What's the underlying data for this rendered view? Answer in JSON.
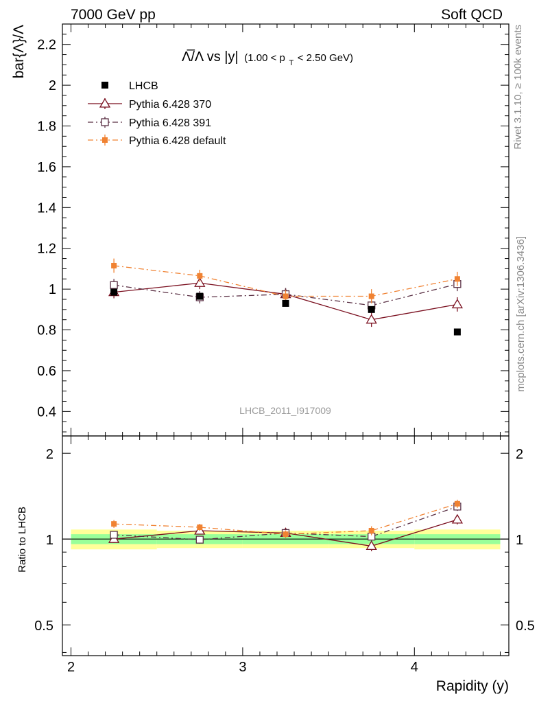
{
  "header": {
    "left": "7000 GeV pp",
    "right": "Soft QCD"
  },
  "side_labels": {
    "rivet": "Rivet 3.1.10, ≥ 100k events",
    "mcplots": "mcplots.cern.ch [arXiv:1306.3436]"
  },
  "watermark": "LHCB_2011_I917009",
  "colors": {
    "data": "#000000",
    "p370": "#7a0f1f",
    "p391": "#5a3044",
    "pdefault": "#f08232",
    "band_outer": "#ffff99",
    "band_inner": "#99ff99"
  },
  "chart_data": {
    "type": "scatter",
    "title": {
      "main": "Λ̅/Λ vs |y|",
      "cut_open": "(1.00 < p",
      "cut_sub": "T",
      "cut_close": " < 2.50 GeV)"
    },
    "xlabel": "Rapidity (y)",
    "ylabel": "bar{Λ}/Λ",
    "ratio_ylabel": "Ratio to LHCB",
    "xlim": [
      1.95,
      4.55
    ],
    "ylim": [
      0.28,
      2.3
    ],
    "ratio_ylim": [
      0.39,
      2.3
    ],
    "x_ticks": [
      "2",
      "3",
      "4"
    ],
    "y_ticks": [
      "0.4",
      "0.6",
      "0.8",
      "1",
      "1.2",
      "1.4",
      "1.6",
      "1.8",
      "2",
      "2.2"
    ],
    "ratio_ticks": [
      "0.5",
      "1",
      "2"
    ],
    "legend": [
      {
        "key": "data",
        "label": "LHCB"
      },
      {
        "key": "p370",
        "label": "Pythia 6.428 370"
      },
      {
        "key": "p391",
        "label": "Pythia 6.428 391"
      },
      {
        "key": "pdefault",
        "label": "Pythia 6.428 default"
      }
    ],
    "x_bins": [
      [
        2.0,
        2.5
      ],
      [
        2.5,
        3.0
      ],
      [
        3.0,
        3.5
      ],
      [
        3.5,
        4.0
      ],
      [
        4.0,
        4.5
      ]
    ],
    "data": {
      "name": "LHCB",
      "x": [
        2.25,
        2.75,
        3.25,
        3.75,
        4.25
      ],
      "y": [
        0.985,
        0.965,
        0.93,
        0.9,
        0.79
      ],
      "band_inner": [
        0.04,
        0.04,
        0.04,
        0.04,
        0.04
      ],
      "band_outer": [
        0.08,
        0.07,
        0.07,
        0.07,
        0.08
      ]
    },
    "series": [
      {
        "key": "p370",
        "name": "Pythia 6.428 370",
        "x": [
          2.25,
          2.75,
          3.25,
          3.75,
          4.25
        ],
        "y": [
          0.985,
          1.03,
          0.975,
          0.85,
          0.925
        ],
        "err": [
          0.03,
          0.03,
          0.03,
          0.035,
          0.035
        ],
        "ratio": [
          1.0,
          1.07,
          1.05,
          0.945,
          1.17
        ]
      },
      {
        "key": "p391",
        "name": "Pythia 6.428 391",
        "x": [
          2.25,
          2.75,
          3.25,
          3.75,
          4.25
        ],
        "y": [
          1.02,
          0.96,
          0.975,
          0.92,
          1.025
        ],
        "err": [
          0.03,
          0.03,
          0.03,
          0.035,
          0.035
        ],
        "ratio": [
          1.035,
          0.995,
          1.05,
          1.02,
          1.3
        ]
      },
      {
        "key": "pdefault",
        "name": "Pythia 6.428 default",
        "x": [
          2.25,
          2.75,
          3.25,
          3.75,
          4.25
        ],
        "y": [
          1.115,
          1.065,
          0.965,
          0.965,
          1.05
        ],
        "err": [
          0.035,
          0.03,
          0.03,
          0.035,
          0.035
        ],
        "ratio": [
          1.13,
          1.1,
          1.04,
          1.07,
          1.33
        ]
      }
    ]
  }
}
